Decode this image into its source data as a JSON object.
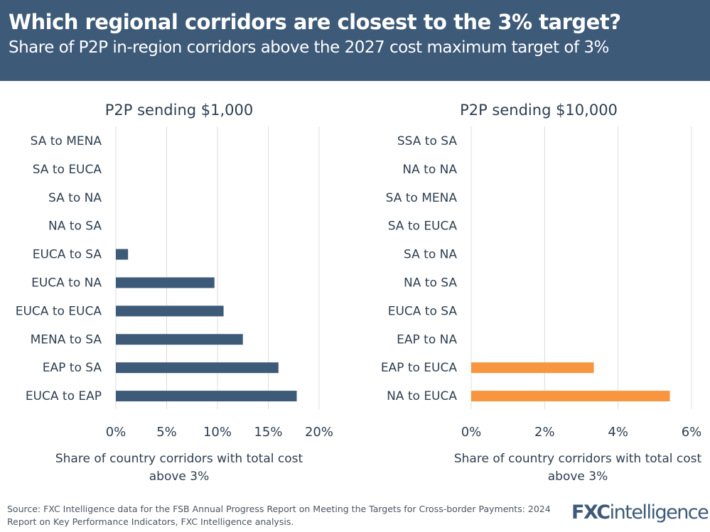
{
  "header": {
    "title": "Which regional corridors are closest to the 3% target?",
    "subtitle": "Share of P2P in-region corridors above the 2027 cost maximum target of 3%"
  },
  "chart_data": [
    {
      "type": "bar",
      "orientation": "horizontal",
      "title": "P2P sending $1,000",
      "categories": [
        "SA to MENA",
        "SA to EUCA",
        "SA to NA",
        "NA to SA",
        "EUCA to SA",
        "EUCA to NA",
        "EUCA to EUCA",
        "MENA to SA",
        "EAP to SA",
        "EUCA to EAP"
      ],
      "values": [
        0,
        0,
        0,
        0,
        1.2,
        9.7,
        10.6,
        12.5,
        16.0,
        17.8
      ],
      "xlim": [
        0,
        20
      ],
      "xticks": [
        0,
        5,
        10,
        15,
        20
      ],
      "tick_labels": [
        "0%",
        "5%",
        "10%",
        "15%",
        "20%"
      ],
      "xlabel": [
        "Share of country corridors with total cost",
        "above 3%"
      ],
      "grid": true,
      "color": "#3d5a78"
    },
    {
      "type": "bar",
      "orientation": "horizontal",
      "title": "P2P sending $10,000",
      "categories": [
        "SSA to SA",
        "NA to NA",
        "SA to MENA",
        "SA to EUCA",
        "SA to NA",
        "NA to SA",
        "EUCA to SA",
        "EAP to NA",
        "EAP to EUCA",
        "NA to EUCA"
      ],
      "values": [
        0,
        0,
        0,
        0,
        0,
        0,
        0,
        0,
        3.34,
        5.41
      ],
      "xlim": [
        0,
        6
      ],
      "xticks": [
        0,
        2,
        4,
        6
      ],
      "tick_labels": [
        "0%",
        "2%",
        "4%",
        "6%"
      ],
      "xlabel": [
        "Share of country corridors with total cost",
        "above 3%"
      ],
      "grid": true,
      "color": "#f7963f"
    }
  ],
  "footer": {
    "source_line1": "Source: FXC Intelligence data for the FSB Annual Progress Report on Meeting the Targets for Cross-border Payments: 2024",
    "source_line2": "Report on Key Performance Indicators, FXC Intelligence analysis.",
    "logo_text": "FXCintelligence"
  }
}
